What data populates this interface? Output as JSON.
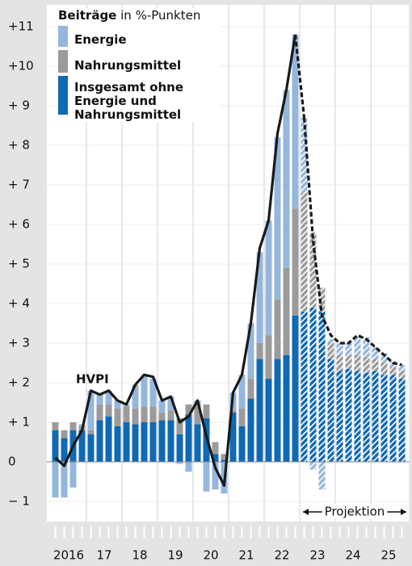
{
  "chart_data": {
    "type": "stacked_bar_line",
    "legend_title": "Beiträge",
    "legend_unit": "in %-Punkten",
    "x_labels": [
      "2016",
      "17",
      "18",
      "19",
      "20",
      "21",
      "22",
      "23",
      "24",
      "25"
    ],
    "periods_per_label": 4,
    "projection_start": 28,
    "projection_label": "Projektion",
    "ylim": [
      -1.1,
      11.5
    ],
    "yticks": [
      {
        "value": 11,
        "label": "+11"
      },
      {
        "value": 10,
        "label": "+10"
      },
      {
        "value": 9,
        "label": "+ 9"
      },
      {
        "value": 8,
        "label": "+ 8"
      },
      {
        "value": 7,
        "label": "+ 7"
      },
      {
        "value": 6,
        "label": "+ 6"
      },
      {
        "value": 5,
        "label": "+ 5"
      },
      {
        "value": 4,
        "label": "+ 4"
      },
      {
        "value": 3,
        "label": "+ 3"
      },
      {
        "value": 2,
        "label": "+ 2"
      },
      {
        "value": 1,
        "label": "+ 1"
      },
      0,
      {
        "value": -1,
        "label": "− 1"
      }
    ],
    "series": [
      {
        "name": "Insgesamt ohne Energie und Nahrungsmittel",
        "color": "#0f69b4",
        "values": [
          0.8,
          0.6,
          0.8,
          0.8,
          0.7,
          1.05,
          1.15,
          0.9,
          1.0,
          0.95,
          1.0,
          1.0,
          1.05,
          1.05,
          0.7,
          1.2,
          0.95,
          1.1,
          0.2,
          0.05,
          1.25,
          0.9,
          1.6,
          2.6,
          2.1,
          2.6,
          2.7,
          3.7,
          3.8,
          3.9,
          3.8,
          2.6,
          2.3,
          2.35,
          2.3,
          2.25,
          2.3,
          2.2,
          2.2,
          2.1
        ]
      },
      {
        "name": "Nahrungsmittel",
        "color": "#9b9b9b",
        "values": [
          0.2,
          0.2,
          0.2,
          0.1,
          0.1,
          0.4,
          0.3,
          0.45,
          0.4,
          0.4,
          0.4,
          0.4,
          0.2,
          0.25,
          0.4,
          0.25,
          0.5,
          0.35,
          0.3,
          0.15,
          0.05,
          0.45,
          0.5,
          0.4,
          1.1,
          1.5,
          2.2,
          2.7,
          3.0,
          1.9,
          0.6,
          0.4,
          0.4,
          0.35,
          0.4,
          0.4,
          0.3,
          0.3,
          0.2,
          0.2
        ]
      },
      {
        "name": "Energie",
        "color": "#95b6dd",
        "values": [
          -0.9,
          -0.9,
          -0.65,
          0.05,
          1.0,
          0.25,
          0.35,
          0.2,
          0.05,
          0.6,
          0.8,
          0.7,
          0.3,
          0.35,
          -0.05,
          -0.25,
          0.1,
          -0.75,
          -0.7,
          -0.8,
          0.45,
          0.85,
          1.4,
          2.3,
          2.9,
          4.1,
          4.5,
          4.4,
          1.9,
          -0.2,
          -0.7,
          0.1,
          0.3,
          0.3,
          0.45,
          0.5,
          0.3,
          0.25,
          0.15,
          0.15
        ]
      }
    ],
    "line_series": {
      "name": "HVPI",
      "color": "#1a1a1a",
      "values": [
        0.1,
        -0.1,
        0.4,
        0.8,
        1.8,
        1.7,
        1.8,
        1.55,
        1.45,
        1.95,
        2.2,
        2.15,
        1.55,
        1.65,
        1.0,
        1.15,
        1.55,
        0.65,
        -0.15,
        -0.6,
        1.75,
        2.2,
        3.5,
        5.4,
        6.1,
        8.3,
        9.4,
        10.8,
        8.7,
        5.6,
        3.7,
        3.2,
        3.0,
        3.0,
        3.2,
        3.1,
        2.9,
        2.7,
        2.5,
        2.45
      ]
    }
  }
}
